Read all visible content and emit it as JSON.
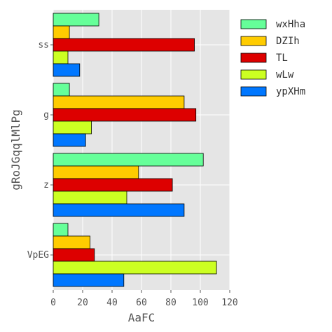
{
  "chart_data": {
    "type": "bar",
    "orientation": "horizontal",
    "title": "",
    "xlabel": "AaFC",
    "ylabel": "gRoJGqqlMlPg",
    "xlim": [
      0,
      120
    ],
    "xticks": [
      0,
      20,
      40,
      60,
      80,
      100,
      120
    ],
    "grid": true,
    "legend_position": "outside-right-top",
    "categories": [
      "VpEG",
      "z",
      "g",
      "ss"
    ],
    "series": [
      {
        "name": "wxHha",
        "color": "#66ff99",
        "values": [
          10,
          102,
          11,
          31
        ]
      },
      {
        "name": "DZIh",
        "color": "#ffcc00",
        "values": [
          25,
          58,
          89,
          11
        ]
      },
      {
        "name": "TL",
        "color": "#dd0000",
        "values": [
          28,
          81,
          97,
          96
        ]
      },
      {
        "name": "wLw",
        "color": "#ccff22",
        "values": [
          111,
          50,
          26,
          10
        ]
      },
      {
        "name": "ypXHm",
        "color": "#0077ff",
        "values": [
          48,
          89,
          22,
          18
        ]
      }
    ]
  }
}
